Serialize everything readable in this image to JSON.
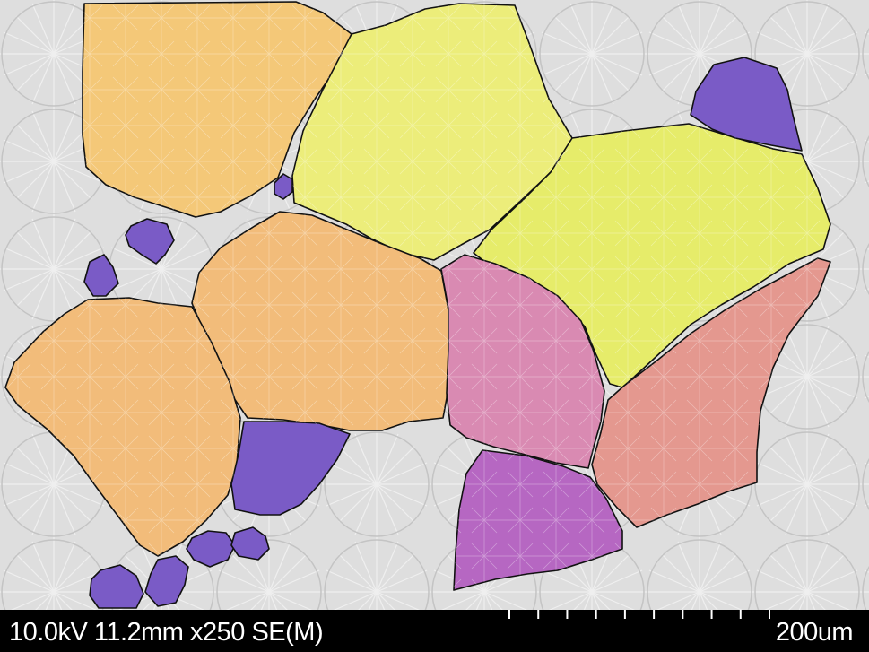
{
  "image": {
    "background_color": "#dcdcdc",
    "outline_color": "#111111",
    "region_colors": {
      "orange_light": "#f4c878",
      "orange": "#f2bc7a",
      "yellow": "#eced7a",
      "yellow_green": "#e6ec6a",
      "pink": "#d98ab2",
      "salmon": "#e4988f",
      "magenta": "#b667c2",
      "purple": "#7a5bc6"
    }
  },
  "databar": {
    "parameters": "10.0kV 11.2mm x250 SE(M)",
    "scale_label": "200um",
    "scale_ticks": 10
  }
}
